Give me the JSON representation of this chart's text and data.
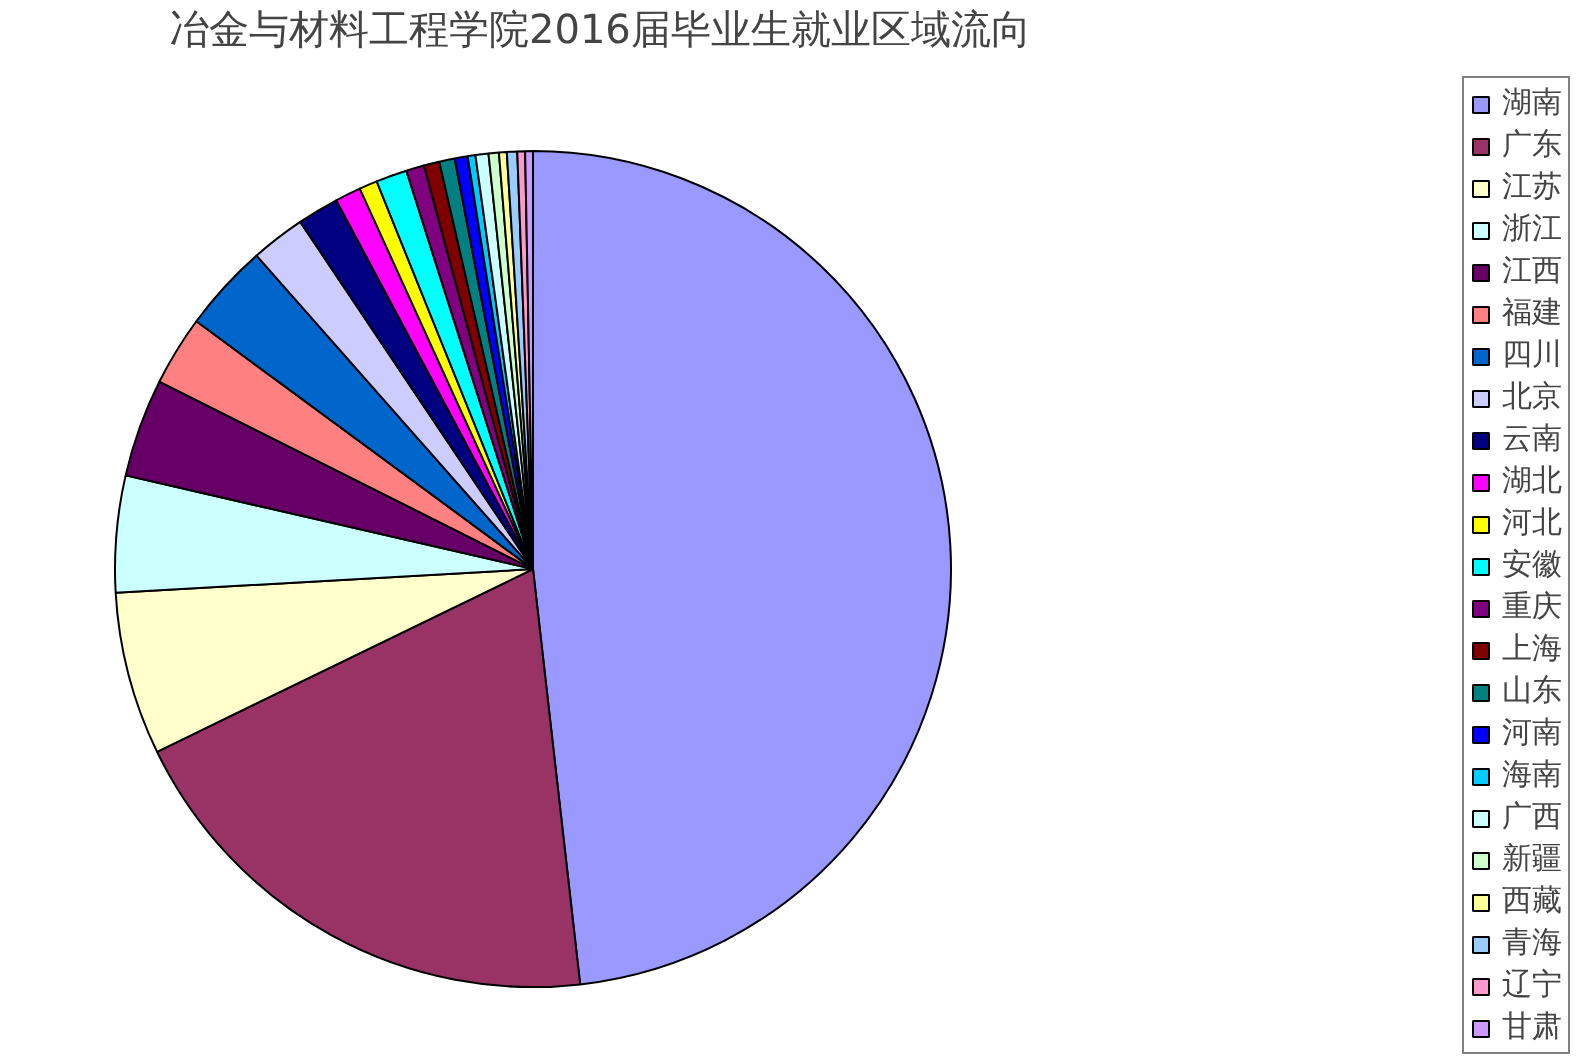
{
  "chart_data": {
    "type": "pie",
    "title": "冶金与材料工程学院2016届毕业生就业区域流向",
    "categories": [
      "湖南",
      "广东",
      "江苏",
      "浙江",
      "江西",
      "福建",
      "四川",
      "北京",
      "云南",
      "湖北",
      "河北",
      "安徽",
      "重庆",
      "上海",
      "山东",
      "河南",
      "海南",
      "广西",
      "新疆",
      "西藏",
      "青海",
      "辽宁",
      "甘肃"
    ],
    "values": [
      48.2,
      19.6,
      6.3,
      4.5,
      3.8,
      2.7,
      3.4,
      2.1,
      1.6,
      1.0,
      0.7,
      1.2,
      0.7,
      0.6,
      0.6,
      0.5,
      0.3,
      0.5,
      0.4,
      0.3,
      0.4,
      0.3,
      0.3
    ],
    "colors": [
      "#9999ff",
      "#993366",
      "#ffffcc",
      "#ccffff",
      "#660066",
      "#ff8080",
      "#0066cc",
      "#ccccff",
      "#000080",
      "#ff00ff",
      "#ffff00",
      "#00ffff",
      "#800080",
      "#800000",
      "#008080",
      "#0000ff",
      "#00ccff",
      "#ccffff",
      "#ccffcc",
      "#ffff99",
      "#99ccff",
      "#ff99cc",
      "#cc99ff"
    ],
    "legend": "right"
  }
}
